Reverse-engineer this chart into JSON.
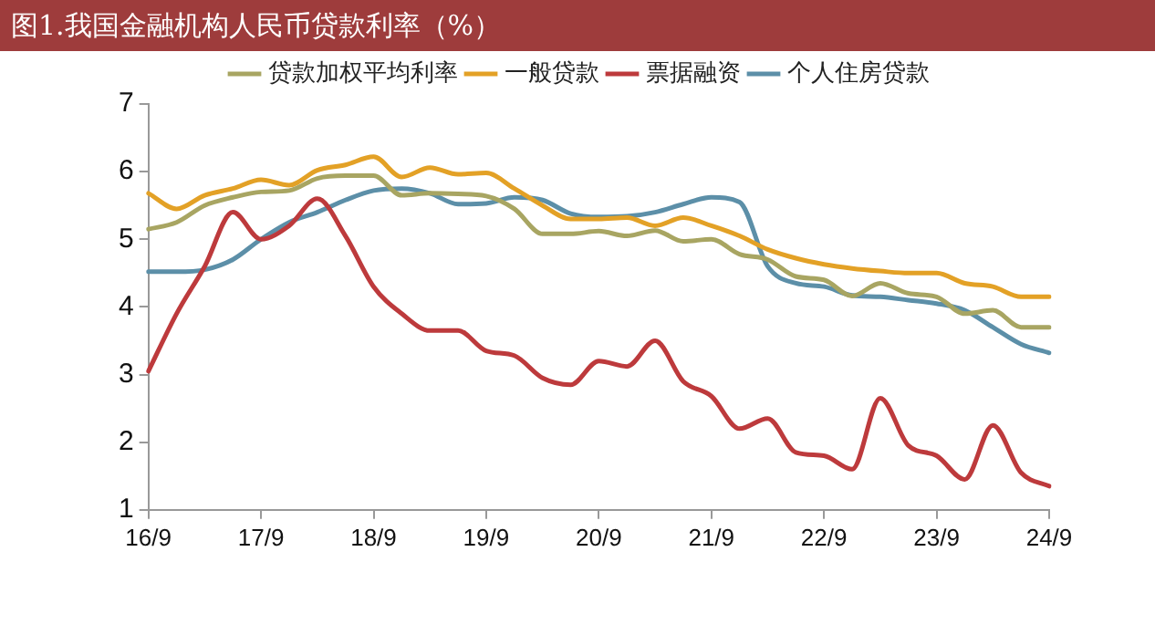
{
  "chart_data": {
    "type": "line",
    "title": "图1.我国金融机构人民币贷款利率（%）",
    "categories": [
      "16/9",
      null,
      null,
      null,
      "17/9",
      null,
      null,
      null,
      "18/9",
      null,
      null,
      null,
      "19/9",
      null,
      null,
      null,
      "20/9",
      null,
      null,
      null,
      "21/9",
      null,
      null,
      null,
      "22/9",
      null,
      null,
      null,
      "23/9",
      null,
      null,
      null,
      "24/9"
    ],
    "series": [
      {
        "name": "贷款加权平均利率",
        "color": "#a8a562",
        "values": [
          5.15,
          5.25,
          5.5,
          5.62,
          5.7,
          5.72,
          5.9,
          5.94,
          5.94,
          5.65,
          5.68,
          5.67,
          5.64,
          5.45,
          5.08,
          5.08,
          5.12,
          5.05,
          5.13,
          4.97,
          5.0,
          4.78,
          4.7,
          4.45,
          4.4,
          4.16,
          4.35,
          4.2,
          4.15,
          3.9,
          3.95,
          3.7,
          3.7
        ]
      },
      {
        "name": "一般贷款",
        "color": "#e3a126",
        "values": [
          5.68,
          5.45,
          5.65,
          5.75,
          5.88,
          5.8,
          6.02,
          6.1,
          6.22,
          5.92,
          6.06,
          5.96,
          5.98,
          5.75,
          5.5,
          5.3,
          5.3,
          5.32,
          5.2,
          5.32,
          5.2,
          5.05,
          4.85,
          4.72,
          4.63,
          4.57,
          4.53,
          4.5,
          4.5,
          4.35,
          4.3,
          4.15,
          4.15
        ]
      },
      {
        "name": "票据融资",
        "color": "#bd3a3c",
        "values": [
          3.05,
          3.9,
          4.6,
          5.4,
          5.0,
          5.2,
          5.6,
          5.05,
          4.3,
          3.9,
          3.65,
          3.65,
          3.35,
          3.28,
          2.95,
          2.85,
          3.2,
          3.12,
          3.5,
          2.9,
          2.68,
          2.2,
          2.35,
          1.85,
          1.8,
          1.6,
          2.65,
          1.95,
          1.8,
          1.45,
          2.25,
          1.55,
          1.35
        ]
      },
      {
        "name": "个人住房贷款",
        "color": "#5c8fa8",
        "values": [
          4.52,
          4.52,
          4.55,
          4.7,
          5.0,
          5.25,
          5.4,
          5.58,
          5.72,
          5.75,
          5.68,
          5.52,
          5.53,
          5.62,
          5.58,
          5.38,
          5.33,
          5.34,
          5.4,
          5.52,
          5.62,
          5.55,
          4.6,
          4.35,
          4.3,
          4.17,
          4.15,
          4.1,
          4.05,
          3.95,
          3.7,
          3.45,
          3.32
        ]
      }
    ],
    "ylim": [
      1,
      7
    ],
    "yticks": [
      1,
      2,
      3,
      4,
      5,
      6,
      7
    ],
    "grid": false,
    "legend": "top",
    "marker": "none",
    "line_style": "solid"
  }
}
